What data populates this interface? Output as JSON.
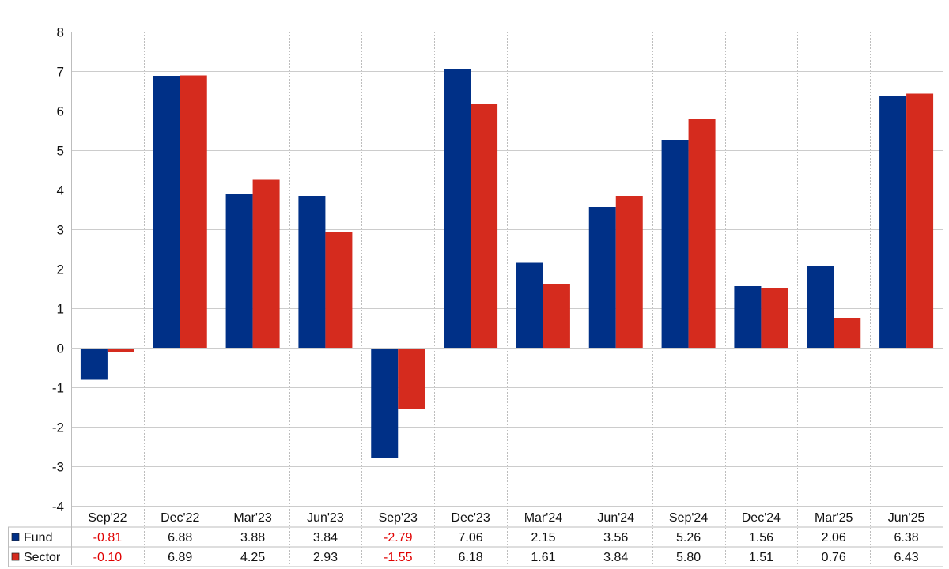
{
  "chart_data": {
    "type": "bar",
    "categories": [
      "Sep'22",
      "Dec'22",
      "Mar'23",
      "Jun'23",
      "Sep'23",
      "Dec'23",
      "Mar'24",
      "Jun'24",
      "Sep'24",
      "Dec'24",
      "Mar'25",
      "Jun'25"
    ],
    "series": [
      {
        "name": "Fund",
        "color": "#003087",
        "values": [
          -0.81,
          6.88,
          3.88,
          3.84,
          -2.79,
          7.06,
          2.15,
          3.56,
          5.26,
          1.56,
          2.06,
          6.38
        ]
      },
      {
        "name": "Sector",
        "color": "#d52b1e",
        "values": [
          -0.1,
          6.89,
          4.25,
          2.93,
          -1.55,
          6.18,
          1.61,
          3.84,
          5.8,
          1.51,
          0.76,
          6.43
        ]
      }
    ],
    "table": {
      "rows": [
        {
          "label": "Fund",
          "cells": [
            "-0.81",
            "6.88",
            "3.88",
            "3.84",
            "-2.79",
            "7.06",
            "2.15",
            "3.56",
            "5.26",
            "1.56",
            "2.06",
            "6.38"
          ]
        },
        {
          "label": "Sector",
          "cells": [
            "-0.10",
            "6.89",
            "4.25",
            "2.93",
            "-1.55",
            "6.18",
            "1.61",
            "3.84",
            "5.80",
            "1.51",
            "0.76",
            "6.43"
          ]
        }
      ],
      "negative_color": "#e00000"
    },
    "title": "",
    "xlabel": "",
    "ylabel": "",
    "ylim": [
      -4,
      8
    ],
    "yticks": [
      "8",
      "7",
      "6",
      "5",
      "4",
      "3",
      "2",
      "1",
      "0",
      "-1",
      "-2",
      "-3",
      "-4"
    ],
    "grid": true,
    "legend": "bottom-left-table"
  }
}
